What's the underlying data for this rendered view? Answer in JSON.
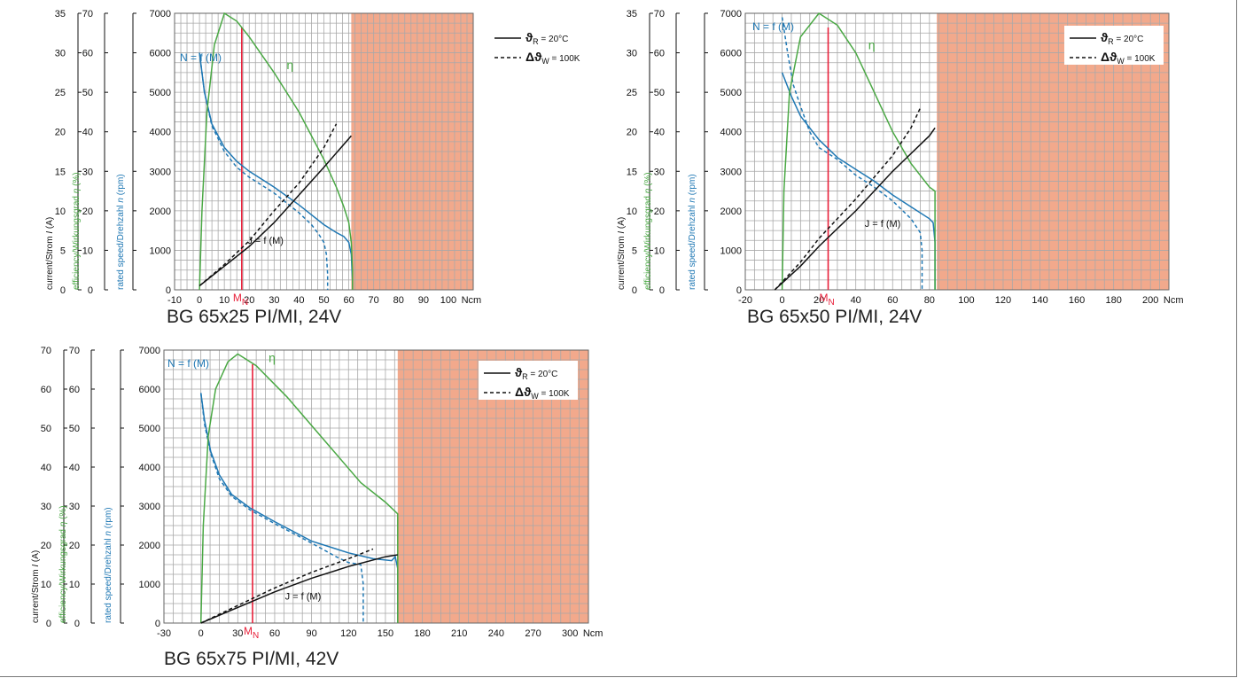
{
  "colors": {
    "efficiency": "#4aa844",
    "speed": "#1f78b4",
    "current": "#111111",
    "rated": "#e8203a",
    "zone": "#f2a98c",
    "grid": "#a9a9a9"
  },
  "legend": {
    "solid_sym": "ϑ",
    "solid_sub": "R",
    "solid_tail": " = 20°C",
    "dashed_sym": "Δϑ",
    "dashed_sub": "W",
    "dashed_tail": " = 100K"
  },
  "labels": {
    "speed_curve": "N = f (M)",
    "current_curve": "J = f (M)",
    "eff_curve": "η",
    "rated": "M",
    "rated_sub": "N",
    "unit": "Ncm"
  },
  "axes": {
    "current": {
      "pre": "current/Strom ",
      "it": "I",
      "post": " (A)"
    },
    "efficiency": {
      "pre": "efficiency/Wirkungsgrad ",
      "it": "η",
      "post": " (%)"
    },
    "speed": {
      "pre": "rated speed/Drehzahl ",
      "it": "n",
      "post": " (rpm)"
    }
  },
  "chart_data": [
    {
      "type": "line",
      "title": "BG 65x25 PI/MI, 24V",
      "xticks": [
        -10,
        0,
        10,
        20,
        30,
        40,
        50,
        60,
        70,
        80,
        90,
        100
      ],
      "xlim": [
        -10,
        110
      ],
      "xlim_grid_step": 2.5,
      "speed_ylim": [
        0,
        7000
      ],
      "speed_ticks": [
        0,
        1000,
        2000,
        3000,
        4000,
        5000,
        6000,
        7000
      ],
      "eff_ticks": [
        0,
        10,
        20,
        30,
        40,
        50,
        60,
        70
      ],
      "current_ticks": [
        0,
        5,
        10,
        15,
        20,
        25,
        30,
        35
      ],
      "current_max": 35,
      "rated_torque": 17,
      "shaded_from": 61,
      "series": [
        {
          "name": "N = f (M)",
          "axis": "speed",
          "style": "solid",
          "points": [
            [
              0,
              6000
            ],
            [
              2,
              5000
            ],
            [
              5,
              4200
            ],
            [
              10,
              3600
            ],
            [
              15,
              3250
            ],
            [
              20,
              3000
            ],
            [
              30,
              2600
            ],
            [
              40,
              2150
            ],
            [
              50,
              1650
            ],
            [
              55,
              1450
            ],
            [
              58,
              1350
            ],
            [
              60,
              1200
            ],
            [
              61,
              900
            ],
            [
              61.5,
              200
            ],
            [
              61.5,
              0
            ]
          ]
        },
        {
          "axis": "speed",
          "style": "dashed",
          "points": [
            [
              0,
              6000
            ],
            [
              2,
              5000
            ],
            [
              5,
              4150
            ],
            [
              10,
              3500
            ],
            [
              15,
              3100
            ],
            [
              20,
              2850
            ],
            [
              30,
              2450
            ],
            [
              40,
              1950
            ],
            [
              45,
              1650
            ],
            [
              48,
              1400
            ],
            [
              50,
              1200
            ],
            [
              51,
              900
            ],
            [
              51.5,
              400
            ],
            [
              51.5,
              0
            ]
          ]
        },
        {
          "name": "η",
          "axis": "efficiency",
          "style": "solid",
          "points": [
            [
              0,
              0
            ],
            [
              1,
              20
            ],
            [
              3,
              45
            ],
            [
              6,
              62
            ],
            [
              10,
              70
            ],
            [
              15,
              68
            ],
            [
              20,
              64
            ],
            [
              30,
              55
            ],
            [
              40,
              45
            ],
            [
              50,
              33
            ],
            [
              55,
              26
            ],
            [
              58,
              21
            ],
            [
              60,
              17
            ],
            [
              61,
              12
            ],
            [
              61.5,
              5
            ],
            [
              61.5,
              0
            ]
          ]
        },
        {
          "name": "J = f (M)",
          "axis": "current",
          "style": "solid",
          "points": [
            [
              0,
              0.5
            ],
            [
              10,
              3
            ],
            [
              20,
              5.5
            ],
            [
              30,
              8.5
            ],
            [
              40,
              12
            ],
            [
              50,
              15.5
            ],
            [
              61,
              19.5
            ]
          ]
        },
        {
          "axis": "current",
          "style": "dashed",
          "points": [
            [
              0,
              0.5
            ],
            [
              10,
              3.2
            ],
            [
              20,
              6.2
            ],
            [
              30,
              10
            ],
            [
              40,
              13.5
            ],
            [
              50,
              18
            ],
            [
              55,
              21
            ]
          ]
        }
      ]
    },
    {
      "type": "line",
      "title": "BG 65x50 PI/MI, 24V",
      "xticks": [
        -20,
        0,
        20,
        40,
        60,
        80,
        100,
        120,
        140,
        160,
        180,
        200
      ],
      "xlim": [
        -20,
        210
      ],
      "xlim_grid_step": 5,
      "speed_ylim": [
        0,
        7000
      ],
      "speed_ticks": [
        0,
        1000,
        2000,
        3000,
        4000,
        5000,
        6000,
        7000
      ],
      "eff_ticks": [
        0,
        10,
        20,
        30,
        40,
        50,
        60,
        70
      ],
      "current_ticks": [
        0,
        5,
        10,
        15,
        20,
        25,
        30,
        35
      ],
      "current_max": 35,
      "rated_torque": 25,
      "shaded_from": 84,
      "series": [
        {
          "name": "N = f (M)",
          "axis": "speed",
          "style": "solid",
          "points": [
            [
              0,
              5500
            ],
            [
              5,
              4900
            ],
            [
              10,
              4400
            ],
            [
              20,
              3800
            ],
            [
              30,
              3350
            ],
            [
              40,
              3050
            ],
            [
              50,
              2750
            ],
            [
              60,
              2400
            ],
            [
              70,
              2100
            ],
            [
              80,
              1800
            ],
            [
              82,
              1700
            ],
            [
              83,
              1200
            ],
            [
              83,
              0
            ]
          ]
        },
        {
          "axis": "speed",
          "style": "dashed",
          "points": [
            [
              0,
              6900
            ],
            [
              3,
              6000
            ],
            [
              6,
              5200
            ],
            [
              10,
              4650
            ],
            [
              15,
              4000
            ],
            [
              20,
              3600
            ],
            [
              30,
              3300
            ],
            [
              40,
              2900
            ],
            [
              50,
              2600
            ],
            [
              60,
              2250
            ],
            [
              70,
              1800
            ],
            [
              75,
              1450
            ],
            [
              76,
              1000
            ],
            [
              76,
              0
            ]
          ]
        },
        {
          "name": "η",
          "axis": "efficiency",
          "style": "solid",
          "points": [
            [
              0,
              0
            ],
            [
              1,
              25
            ],
            [
              4,
              50
            ],
            [
              10,
              64
            ],
            [
              20,
              70
            ],
            [
              30,
              67
            ],
            [
              40,
              60
            ],
            [
              50,
              50
            ],
            [
              60,
              40
            ],
            [
              70,
              32
            ],
            [
              80,
              26
            ],
            [
              83,
              25
            ],
            [
              83,
              0
            ]
          ]
        },
        {
          "name": "J = f (M)",
          "axis": "current",
          "style": "solid",
          "points": [
            [
              -4,
              0
            ],
            [
              10,
              3
            ],
            [
              20,
              5.5
            ],
            [
              40,
              10
            ],
            [
              60,
              15
            ],
            [
              80,
              19.5
            ],
            [
              83,
              20.5
            ]
          ]
        },
        {
          "axis": "current",
          "style": "dashed",
          "points": [
            [
              -4,
              0
            ],
            [
              10,
              3.5
            ],
            [
              20,
              6.5
            ],
            [
              40,
              11.5
            ],
            [
              60,
              17
            ],
            [
              70,
              20.5
            ],
            [
              75,
              23
            ]
          ]
        }
      ]
    },
    {
      "type": "line",
      "title": "BG 65x75 PI/MI, 42V",
      "xticks": [
        -30,
        0,
        30,
        60,
        90,
        120,
        150,
        180,
        210,
        240,
        270,
        300
      ],
      "xlim": [
        -30,
        315
      ],
      "xlim_grid_step": 7.5,
      "speed_ylim": [
        0,
        7000
      ],
      "speed_ticks": [
        0,
        1000,
        2000,
        3000,
        4000,
        5000,
        6000,
        7000
      ],
      "eff_ticks": [
        0,
        10,
        20,
        30,
        40,
        50,
        60,
        70
      ],
      "current_ticks": [
        0,
        10,
        20,
        30,
        40,
        50,
        60,
        70
      ],
      "current_max": 70,
      "rated_torque": 42,
      "shaded_from": 160,
      "series": [
        {
          "name": "N = f (M)",
          "axis": "speed",
          "style": "solid",
          "points": [
            [
              0,
              5900
            ],
            [
              3,
              5200
            ],
            [
              8,
              4400
            ],
            [
              15,
              3800
            ],
            [
              25,
              3300
            ],
            [
              40,
              2950
            ],
            [
              60,
              2600
            ],
            [
              90,
              2100
            ],
            [
              120,
              1800
            ],
            [
              140,
              1650
            ],
            [
              155,
              1600
            ],
            [
              158,
              1700
            ],
            [
              160,
              1400
            ],
            [
              160,
              0
            ]
          ]
        },
        {
          "axis": "speed",
          "style": "dashed",
          "points": [
            [
              0,
              5900
            ],
            [
              3,
              5100
            ],
            [
              8,
              4350
            ],
            [
              15,
              3700
            ],
            [
              25,
              3250
            ],
            [
              40,
              2900
            ],
            [
              60,
              2550
            ],
            [
              90,
              2050
            ],
            [
              110,
              1700
            ],
            [
              120,
              1550
            ],
            [
              130,
              1500
            ],
            [
              132,
              1000
            ],
            [
              132,
              0
            ]
          ]
        },
        {
          "name": "η",
          "axis": "efficiency",
          "style": "solid",
          "points": [
            [
              0,
              0
            ],
            [
              2,
              25
            ],
            [
              6,
              48
            ],
            [
              12,
              60
            ],
            [
              22,
              67
            ],
            [
              30,
              69
            ],
            [
              45,
              66
            ],
            [
              70,
              58
            ],
            [
              100,
              47
            ],
            [
              130,
              36
            ],
            [
              150,
              31
            ],
            [
              160,
              28
            ],
            [
              160,
              0
            ]
          ]
        },
        {
          "name": "J = f (M)",
          "axis": "current",
          "style": "solid",
          "points": [
            [
              0,
              0
            ],
            [
              30,
              4
            ],
            [
              60,
              8
            ],
            [
              90,
              11.5
            ],
            [
              120,
              14.5
            ],
            [
              150,
              17
            ],
            [
              160,
              17.5
            ]
          ]
        },
        {
          "axis": "current",
          "style": "dashed",
          "points": [
            [
              0,
              0
            ],
            [
              30,
              4.5
            ],
            [
              60,
              9
            ],
            [
              90,
              13
            ],
            [
              120,
              16.5
            ],
            [
              140,
              19
            ]
          ]
        }
      ]
    }
  ]
}
